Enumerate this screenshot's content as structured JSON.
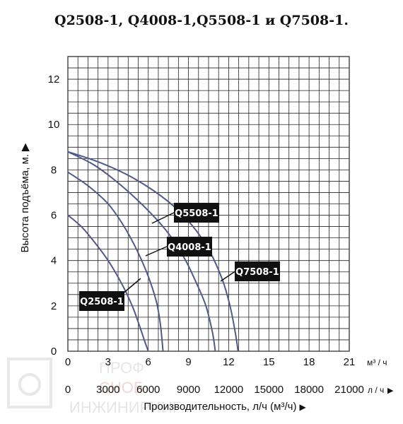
{
  "title": "Q2508-1, Q4008-1,Q5508-1 и Q7508-1.",
  "chart_data": {
    "type": "line",
    "ylabel": "Высота подъёма, м.",
    "xlabel": "Производительность, л/ч (м³/ч)",
    "x_unit_m3": "м³ / ч",
    "x_unit_l": "л / ч",
    "xlim": [
      0,
      21
    ],
    "ylim": [
      0,
      13
    ],
    "y_ticks": [
      "0",
      "2",
      "4",
      "6",
      "8",
      "10",
      "12"
    ],
    "x_ticks_m3": [
      "0",
      "3",
      "6",
      "9",
      "12",
      "15",
      "18",
      "21"
    ],
    "x_ticks_l": [
      "0",
      "3000",
      "6000",
      "9000",
      "12000",
      "15000",
      "18000",
      "21000"
    ],
    "grid": true,
    "series": [
      {
        "name": "Q2508-1",
        "x": [
          0,
          1,
          2,
          3,
          4,
          4.8,
          5.3,
          5.7,
          6.0
        ],
        "y": [
          6.0,
          5.5,
          4.8,
          4.0,
          3.0,
          2.0,
          1.2,
          0.5,
          0
        ]
      },
      {
        "name": "Q4008-1",
        "x": [
          0,
          1.5,
          3,
          4.2,
          5.2,
          6.0,
          6.6,
          6.9,
          7.1
        ],
        "y": [
          7.9,
          7.3,
          6.5,
          5.5,
          4.4,
          3.3,
          2.2,
          1.2,
          0
        ]
      },
      {
        "name": "Q5508-1",
        "x": [
          0,
          2,
          4,
          6,
          7.5,
          8.7,
          9.6,
          10.3,
          10.8,
          11.0
        ],
        "y": [
          8.8,
          8.2,
          7.3,
          6.2,
          5.2,
          4.1,
          3.0,
          2.0,
          0.8,
          0
        ]
      },
      {
        "name": "Q7508-1",
        "x": [
          0,
          2.5,
          5,
          7.5,
          9.2,
          10.5,
          11.5,
          12.1,
          12.5,
          12.7
        ],
        "y": [
          8.8,
          8.3,
          7.6,
          6.6,
          5.6,
          4.5,
          3.2,
          2.0,
          0.8,
          0
        ]
      }
    ]
  },
  "labels": [
    {
      "series": "Q2508-1",
      "text": "Q2508-1"
    },
    {
      "series": "Q4008-1",
      "text": "Q4008-1"
    },
    {
      "series": "Q5508-1",
      "text": "Q5508-1"
    },
    {
      "series": "Q7508-1",
      "text": "Q7508-1"
    }
  ],
  "watermark": {
    "text_line1": "ПРОФ",
    "text_line2": "СНОБ",
    "text_line3": "ИНЖИНИРИНГ",
    "color": "#e4e4e4"
  },
  "colors": {
    "curve": "#4f5a8a",
    "grid": "#222222",
    "label_bg": "#111111",
    "label_fg": "#ffffff"
  }
}
